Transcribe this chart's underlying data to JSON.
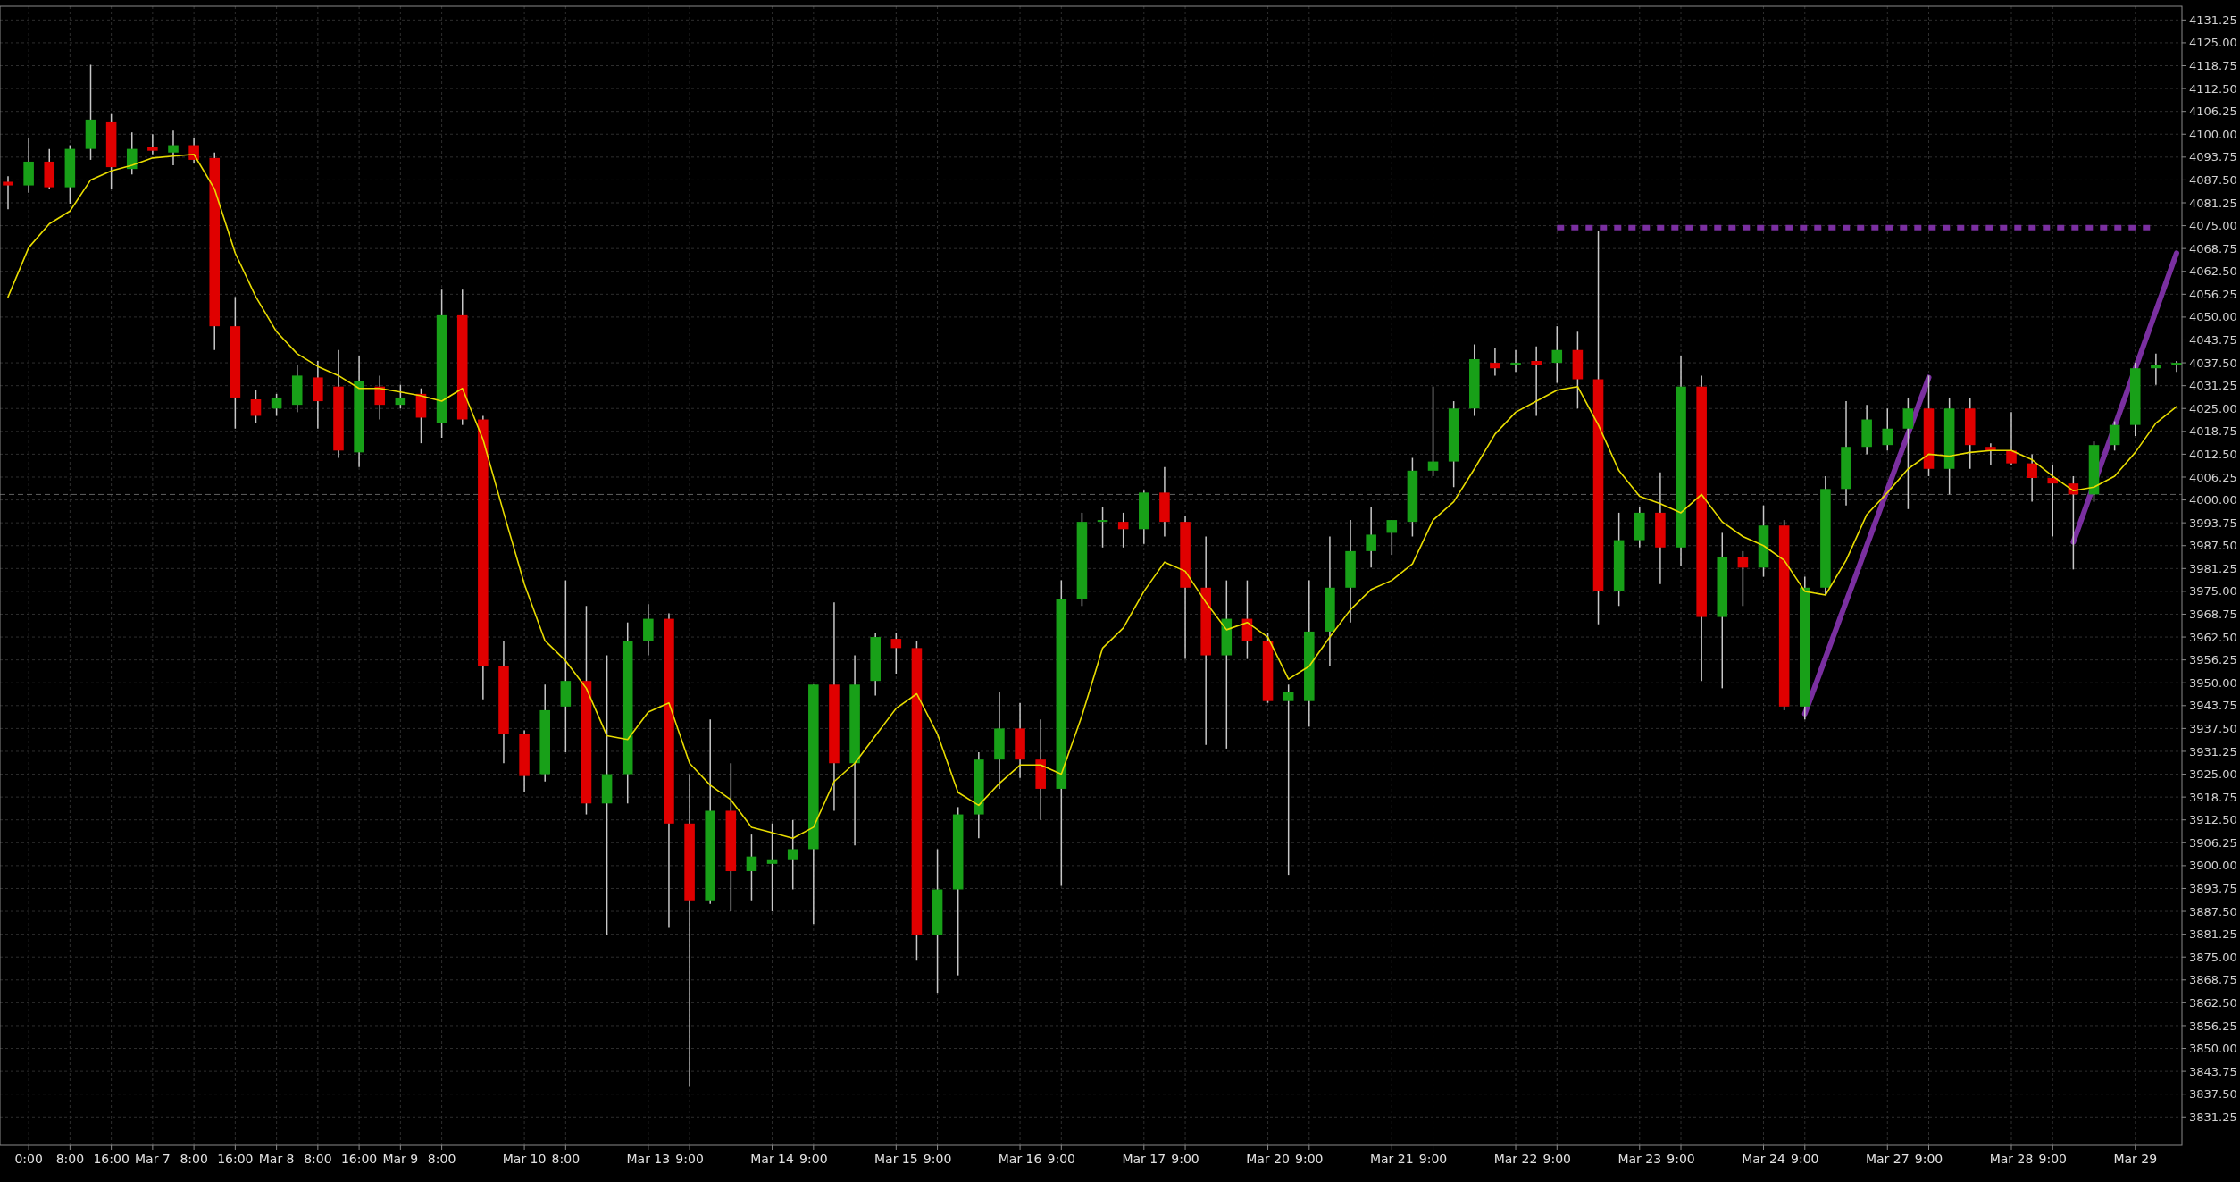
{
  "chart_data": {
    "type": "candlestick",
    "grid": true,
    "ylim": [
      3823.5,
      4135
    ],
    "yticks": [
      {
        "value": 3831.25,
        "label": "3831.25"
      },
      {
        "value": 3837.5,
        "label": "3837.50"
      },
      {
        "value": 3843.75,
        "label": "3843.75"
      },
      {
        "value": 3850,
        "label": "3850.00"
      },
      {
        "value": 3856.25,
        "label": "3856.25"
      },
      {
        "value": 3862.5,
        "label": "3862.50"
      },
      {
        "value": 3868.75,
        "label": "3868.75"
      },
      {
        "value": 3875,
        "label": "3875.00"
      },
      {
        "value": 3881.25,
        "label": "3881.25"
      },
      {
        "value": 3887.5,
        "label": "3887.50"
      },
      {
        "value": 3893.75,
        "label": "3893.75"
      },
      {
        "value": 3900,
        "label": "3900.00"
      },
      {
        "value": 3906.25,
        "label": "3906.25"
      },
      {
        "value": 3912.5,
        "label": "3912.50"
      },
      {
        "value": 3918.75,
        "label": "3918.75"
      },
      {
        "value": 3925,
        "label": "3925.00"
      },
      {
        "value": 3931.25,
        "label": "3931.25"
      },
      {
        "value": 3937.5,
        "label": "3937.50"
      },
      {
        "value": 3943.75,
        "label": "3943.75"
      },
      {
        "value": 3950,
        "label": "3950.00"
      },
      {
        "value": 3956.25,
        "label": "3956.25"
      },
      {
        "value": 3962.5,
        "label": "3962.50"
      },
      {
        "value": 3968.75,
        "label": "3968.75"
      },
      {
        "value": 3975,
        "label": "3975.00"
      },
      {
        "value": 3981.25,
        "label": "3981.25"
      },
      {
        "value": 3987.5,
        "label": "3987.50"
      },
      {
        "value": 3993.75,
        "label": "3993.75"
      },
      {
        "value": 4000,
        "label": "4000.00"
      },
      {
        "value": 4006.25,
        "label": "4006.25"
      },
      {
        "value": 4012.5,
        "label": "4012.50"
      },
      {
        "value": 4018.75,
        "label": "4018.75"
      },
      {
        "value": 4025,
        "label": "4025.00"
      },
      {
        "value": 4031.25,
        "label": "4031.25"
      },
      {
        "value": 4037.5,
        "label": "4037.50"
      },
      {
        "value": 4043.75,
        "label": "4043.75"
      },
      {
        "value": 4050,
        "label": "4050.00"
      },
      {
        "value": 4056.25,
        "label": "4056.25"
      },
      {
        "value": 4062.5,
        "label": "4062.50"
      },
      {
        "value": 4068.75,
        "label": "4068.75"
      },
      {
        "value": 4075,
        "label": "4075.00"
      },
      {
        "value": 4081.25,
        "label": "4081.25"
      },
      {
        "value": 4087.5,
        "label": "4087.50"
      },
      {
        "value": 4093.75,
        "label": "4093.75"
      },
      {
        "value": 4100,
        "label": "4100.00"
      },
      {
        "value": 4106.25,
        "label": "4106.25"
      },
      {
        "value": 4112.5,
        "label": "4112.50"
      },
      {
        "value": 4118.75,
        "label": "4118.75"
      },
      {
        "value": 4125,
        "label": "4125.00"
      },
      {
        "value": 4131.25,
        "label": "4131.25"
      }
    ],
    "categories": [
      null,
      "0:00",
      null,
      "8:00",
      null,
      "16:00",
      null,
      "Mar 7",
      null,
      "8:00",
      null,
      "16:00",
      null,
      "Mar 8",
      null,
      "8:00",
      null,
      "16:00",
      null,
      "Mar 9",
      null,
      "8:00",
      null,
      null,
      null,
      "Mar 10",
      null,
      "8:00",
      null,
      null,
      null,
      "Mar 13",
      null,
      "9:00",
      null,
      null,
      null,
      "Mar 14",
      null,
      "9:00",
      null,
      null,
      null,
      "Mar 15",
      null,
      "9:00",
      null,
      null,
      null,
      "Mar 16",
      null,
      "9:00",
      null,
      null,
      null,
      "Mar 17",
      null,
      "9:00",
      null,
      null,
      null,
      "Mar 20",
      null,
      "9:00",
      null,
      null,
      null,
      "Mar 21",
      null,
      "9:00",
      null,
      null,
      null,
      "Mar 22",
      null,
      "9:00",
      null,
      null,
      null,
      "Mar 23",
      null,
      "9:00",
      null,
      null,
      null,
      "Mar 24",
      null,
      "9:00",
      null,
      null,
      null,
      "Mar 27",
      null,
      "9:00",
      null,
      null,
      null,
      "Mar 28",
      null,
      "9:00",
      null,
      null,
      null,
      "Mar 29",
      null,
      null
    ],
    "ref_lines": [
      {
        "axis": "y",
        "value": 4001.5,
        "color": "#606060",
        "line_style": "dashed"
      }
    ],
    "series": [
      {
        "color": "#c8c8c8",
        "ohlc": [
          [
            4087,
            4088.5,
            4079.5,
            4086
          ],
          [
            4086,
            4099,
            4084,
            4092.5
          ],
          [
            4092.5,
            4096,
            4085,
            4085.5
          ],
          [
            4085.5,
            4097,
            4081,
            4096
          ],
          [
            4096,
            4119,
            4093,
            4104
          ],
          [
            4103.5,
            4105.5,
            4085,
            4091
          ],
          [
            4090.5,
            4100.5,
            4089,
            4096
          ],
          [
            4096.5,
            4100,
            4094.5,
            4095.5
          ],
          [
            4095,
            4101,
            4091.5,
            4097
          ],
          [
            4097,
            4099,
            4092,
            4093
          ],
          [
            4093.5,
            4095,
            4041,
            4047.5
          ],
          [
            4047.5,
            4055.5,
            4019.5,
            4028
          ],
          [
            4027.5,
            4030,
            4021,
            4023
          ],
          [
            4025,
            4029,
            4023,
            4028
          ],
          [
            4026,
            4037,
            4024,
            4034
          ],
          [
            4033.5,
            4038,
            4019.5,
            4027
          ],
          [
            4031,
            4041,
            4011.5,
            4013.5
          ],
          [
            4013,
            4039.5,
            4009,
            4032.5
          ],
          [
            4031,
            4034,
            4022,
            4026
          ],
          [
            4026,
            4031.5,
            4025,
            4028
          ],
          [
            4029,
            4030.5,
            4015.5,
            4022.5
          ],
          [
            4021,
            4057.5,
            4017,
            4050.5
          ],
          [
            4050.5,
            4057.5,
            4020.5,
            4022
          ],
          [
            4022,
            4023,
            3945.5,
            3954.5
          ],
          [
            3954.5,
            3961.5,
            3928,
            3936
          ],
          [
            3936,
            3937,
            3920,
            3924.5
          ],
          [
            3925,
            3949.5,
            3923,
            3942.5
          ],
          [
            3943.5,
            3978,
            3931,
            3950.5
          ],
          [
            3950.5,
            3971,
            3914,
            3917
          ],
          [
            3917,
            3957.5,
            3881,
            3925
          ],
          [
            3925,
            3966.5,
            3917,
            3961.5
          ],
          [
            3961.5,
            3971.5,
            3957.5,
            3967.5
          ],
          [
            3967.5,
            3969,
            3883,
            3911.5
          ],
          [
            3911.5,
            3925,
            3839.5,
            3890.5
          ],
          [
            3890.5,
            3940,
            3889.5,
            3915
          ],
          [
            3915,
            3928,
            3887.5,
            3898.5
          ],
          [
            3898.5,
            3908.5,
            3890.5,
            3902.5
          ],
          [
            3900.5,
            3911.5,
            3887.5,
            3901.5
          ],
          [
            3901.5,
            3912.5,
            3893.5,
            3904.5
          ],
          [
            3904.5,
            3949.5,
            3884,
            3949.5
          ],
          [
            3949.5,
            3972,
            3915,
            3928
          ],
          [
            3928,
            3957.5,
            3905.5,
            3949.5
          ],
          [
            3950.5,
            3963.5,
            3946.5,
            3962.5
          ],
          [
            3962,
            3963.5,
            3952.5,
            3959.5
          ],
          [
            3959.5,
            3961.5,
            3874,
            3881
          ],
          [
            3881,
            3904.5,
            3865,
            3893.5
          ],
          [
            3893.5,
            3916,
            3870,
            3914
          ],
          [
            3914,
            3931,
            3907.5,
            3929
          ],
          [
            3929,
            3947.5,
            3921,
            3937.5
          ],
          [
            3937.5,
            3944.5,
            3924,
            3929
          ],
          [
            3929,
            3940,
            3912.5,
            3921
          ],
          [
            3921,
            3978,
            3894.5,
            3973
          ],
          [
            3973,
            3996.5,
            3971,
            3994
          ],
          [
            3994,
            3998,
            3987,
            3994.5
          ],
          [
            3994,
            3996.5,
            3987,
            3992
          ],
          [
            3992,
            4002.5,
            3988,
            4002
          ],
          [
            4002,
            4009,
            3990,
            3994
          ],
          [
            3994,
            3995.5,
            3956.5,
            3976
          ],
          [
            3976,
            3990,
            3933,
            3957.5
          ],
          [
            3957.5,
            3978,
            3932,
            3967.5
          ],
          [
            3967.5,
            3978,
            3956.5,
            3961.5
          ],
          [
            3961.5,
            3963.5,
            3944.5,
            3945
          ],
          [
            3945,
            3949.5,
            3897.5,
            3947.5
          ],
          [
            3945,
            3978,
            3938,
            3964
          ],
          [
            3964,
            3990,
            3954.5,
            3976
          ],
          [
            3976,
            3994.5,
            3966.5,
            3986
          ],
          [
            3986,
            3998,
            3981.5,
            3990.5
          ],
          [
            3991,
            3994.5,
            3985,
            3994.5
          ],
          [
            3994,
            4011.5,
            3990,
            4008
          ],
          [
            4008,
            4031,
            4006.5,
            4010.5
          ],
          [
            4010.5,
            4027,
            4003.5,
            4025
          ],
          [
            4025,
            4042.5,
            4023,
            4038.5
          ],
          [
            4037.5,
            4041.5,
            4034,
            4036
          ],
          [
            4037,
            4041,
            4035,
            4037.5
          ],
          [
            4038,
            4042,
            4023,
            4037
          ],
          [
            4037.5,
            4047.5,
            4032,
            4041
          ],
          [
            4041,
            4046,
            4025,
            4033
          ],
          [
            4033,
            4073.5,
            3966,
            3975
          ],
          [
            3975,
            3996.5,
            3971,
            3989
          ],
          [
            3989,
            3998,
            3987,
            3996.5
          ],
          [
            3996.5,
            4007.5,
            3977,
            3987
          ],
          [
            3987,
            4039.5,
            3982,
            4031
          ],
          [
            4031,
            4034,
            3950.5,
            3968
          ],
          [
            3968,
            3991,
            3948.5,
            3984.5
          ],
          [
            3984.5,
            3986,
            3971,
            3981.5
          ],
          [
            3981.5,
            3998.5,
            3979,
            3993
          ],
          [
            3993,
            3994.5,
            3942.5,
            3943.5
          ],
          [
            3943.5,
            3979,
            3940,
            3976
          ],
          [
            3976,
            4006.5,
            3974,
            4003
          ],
          [
            4003,
            4027,
            3998.5,
            4014.5
          ],
          [
            4014.5,
            4026,
            4012.5,
            4022
          ],
          [
            4015,
            4025,
            4013.5,
            4019.5
          ],
          [
            4019.5,
            4028,
            3997.5,
            4025
          ],
          [
            4025,
            4034,
            4006.5,
            4008.5
          ],
          [
            4008.5,
            4028,
            4001.5,
            4025
          ],
          [
            4025,
            4028,
            4008.5,
            4015
          ],
          [
            4014.5,
            4015.5,
            4009.5,
            4013.5
          ],
          [
            4013.5,
            4024,
            4009.5,
            4010
          ],
          [
            4010,
            4012.5,
            3999.5,
            4006
          ],
          [
            4006,
            4009.5,
            3990,
            4004.5
          ],
          [
            4004.5,
            4006.5,
            3981,
            4001.5
          ],
          [
            4001.5,
            4016,
            3999.5,
            4015
          ],
          [
            4015,
            4021.5,
            4013.5,
            4020.5
          ],
          [
            4020.5,
            4037.5,
            4017.5,
            4036
          ],
          [
            4036,
            4040,
            4031.5,
            4037
          ],
          [
            4037,
            4038,
            4035,
            4037.5
          ]
        ],
        "colors": [
          "#e00000",
          "#18a018",
          "#e00000",
          "#18a018",
          "#18a018",
          "#e00000",
          "#18a018",
          "#e00000",
          "#18a018",
          "#e00000",
          "#e00000",
          "#e00000",
          "#e00000",
          "#18a018",
          "#18a018",
          "#e00000",
          "#e00000",
          "#18a018",
          "#e00000",
          "#18a018",
          "#e00000",
          "#18a018",
          "#e00000",
          "#e00000",
          "#e00000",
          "#e00000",
          "#18a018",
          "#18a018",
          "#e00000",
          "#18a018",
          "#18a018",
          "#18a018",
          "#e00000",
          "#e00000",
          "#18a018",
          "#e00000",
          "#18a018",
          "#18a018",
          "#18a018",
          "#18a018",
          "#e00000",
          "#18a018",
          "#18a018",
          "#e00000",
          "#e00000",
          "#18a018",
          "#18a018",
          "#18a018",
          "#18a018",
          "#e00000",
          "#e00000",
          "#18a018",
          "#18a018",
          "#18a018",
          "#e00000",
          "#18a018",
          "#e00000",
          "#e00000",
          "#e00000",
          "#18a018",
          "#e00000",
          "#e00000",
          "#18a018",
          "#18a018",
          "#18a018",
          "#18a018",
          "#18a018",
          "#18a018",
          "#18a018",
          "#18a018",
          "#18a018",
          "#18a018",
          "#e00000",
          "#18a018",
          "#e00000",
          "#18a018",
          "#e00000",
          "#e00000",
          "#18a018",
          "#18a018",
          "#e00000",
          "#18a018",
          "#e00000",
          "#18a018",
          "#e00000",
          "#18a018",
          "#e00000",
          "#18a018",
          "#18a018",
          "#18a018",
          "#18a018",
          "#18a018",
          "#18a018",
          "#e00000",
          "#18a018",
          "#e00000",
          "#e00000",
          "#e00000",
          "#e00000",
          "#e00000",
          "#e00000",
          "#18a018",
          "#18a018",
          "#18a018",
          "#18a018",
          "#18a018"
        ]
      },
      {
        "type": "line",
        "color": "#e8dc00",
        "values": [
          4055.5,
          4069,
          4075.5,
          4079,
          4087.5,
          4090,
          4091.5,
          4093.5,
          4094,
          4094.5,
          4085,
          4067.5,
          4055.5,
          4046,
          4040,
          4036.5,
          4034,
          4030.5,
          4030.5,
          4029.5,
          4028.5,
          4027,
          4030.5,
          4016.5,
          3996.5,
          3977,
          3961.5,
          3956,
          3948.5,
          3935.5,
          3934.5,
          3942,
          3944.5,
          3928,
          3922,
          3918,
          3910.5,
          3909,
          3907.5,
          3910.5,
          3923,
          3928,
          3935.5,
          3943,
          3947,
          3936,
          3920,
          3916.5,
          3922.5,
          3927.5,
          3927.5,
          3925,
          3941,
          3959.5,
          3965,
          3975,
          3983,
          3980.5,
          3972,
          3964.5,
          3966.5,
          3962.5,
          3951,
          3954.5,
          3962.5,
          3970,
          3975.5,
          3978,
          3982.5,
          3994.5,
          3999.5,
          4008.5,
          4018,
          4024,
          4027,
          4030,
          4031,
          4020.5,
          4008,
          4001,
          3999,
          3996.5,
          4001.5,
          3994,
          3990,
          3987.5,
          3983.5,
          3975,
          3974,
          3983.5,
          3996,
          4002,
          4008.5,
          4012.5,
          4012,
          4013,
          4013.5,
          4013.5,
          4011,
          4006.5,
          4002.5,
          4003.5,
          4006.5,
          4013,
          4021,
          4025.5
        ]
      },
      {
        "type": "line",
        "color": "#7a2fa0",
        "line_style": "dotted",
        "values": [
          null,
          null,
          null,
          null,
          null,
          null,
          null,
          null,
          null,
          null,
          null,
          null,
          null,
          null,
          null,
          null,
          null,
          null,
          null,
          null,
          null,
          null,
          null,
          null,
          null,
          null,
          null,
          null,
          null,
          null,
          null,
          null,
          null,
          null,
          null,
          null,
          null,
          null,
          null,
          null,
          null,
          null,
          null,
          null,
          null,
          null,
          null,
          null,
          null,
          null,
          null,
          null,
          null,
          null,
          null,
          null,
          null,
          null,
          null,
          null,
          null,
          null,
          null,
          null,
          null,
          null,
          null,
          null,
          null,
          null,
          null,
          null,
          null,
          null,
          null,
          4074.5,
          4074.5,
          4074.5,
          4074.5,
          4074.5,
          4074.5,
          4074.5,
          4074.5,
          4074.5,
          4074.5,
          4074.5,
          4074.5,
          4074.5,
          4074.5,
          4074.5,
          4074.5,
          4074.5,
          4074.5,
          4074.5,
          4074.5,
          4074.5,
          4074.5,
          4074.5,
          4074.5,
          4074.5,
          4074.5,
          4074.5,
          4074.5,
          4074.5,
          4074.5,
          null
        ]
      },
      {
        "type": "line",
        "color": "#7a2fa0",
        "values": [
          null,
          null,
          null,
          null,
          null,
          null,
          null,
          null,
          null,
          null,
          null,
          null,
          null,
          null,
          null,
          null,
          null,
          null,
          null,
          null,
          null,
          null,
          null,
          null,
          null,
          null,
          null,
          null,
          null,
          null,
          null,
          null,
          null,
          null,
          null,
          null,
          null,
          null,
          null,
          null,
          null,
          null,
          null,
          null,
          null,
          null,
          null,
          null,
          null,
          null,
          null,
          null,
          null,
          null,
          null,
          null,
          null,
          null,
          null,
          null,
          null,
          null,
          null,
          null,
          null,
          null,
          null,
          null,
          null,
          null,
          null,
          null,
          null,
          null,
          null,
          null,
          null,
          null,
          null,
          null,
          null,
          null,
          null,
          null,
          null,
          null,
          null,
          3941.5,
          null,
          null,
          null,
          null,
          null,
          4033.5,
          null,
          null,
          null,
          null,
          null,
          null,
          null,
          null,
          null,
          null,
          null,
          null
        ]
      },
      {
        "type": "line",
        "color": "#7a2fa0",
        "values": [
          null,
          null,
          null,
          null,
          null,
          null,
          null,
          null,
          null,
          null,
          null,
          null,
          null,
          null,
          null,
          null,
          null,
          null,
          null,
          null,
          null,
          null,
          null,
          null,
          null,
          null,
          null,
          null,
          null,
          null,
          null,
          null,
          null,
          null,
          null,
          null,
          null,
          null,
          null,
          null,
          null,
          null,
          null,
          null,
          null,
          null,
          null,
          null,
          null,
          null,
          null,
          null,
          null,
          null,
          null,
          null,
          null,
          null,
          null,
          null,
          null,
          null,
          null,
          null,
          null,
          null,
          null,
          null,
          null,
          null,
          null,
          null,
          null,
          null,
          null,
          null,
          null,
          null,
          null,
          null,
          null,
          null,
          null,
          null,
          null,
          null,
          null,
          null,
          null,
          null,
          null,
          null,
          null,
          null,
          null,
          null,
          null,
          null,
          null,
          null,
          3988.5,
          null,
          null,
          null,
          null,
          4067.5
        ]
      }
    ]
  }
}
